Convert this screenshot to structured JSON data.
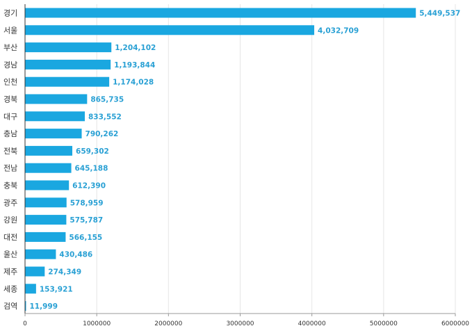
{
  "chart_data": {
    "type": "bar",
    "orientation": "horizontal",
    "title": "",
    "xlabel": "",
    "ylabel": "",
    "categories": [
      "경기",
      "서울",
      "부산",
      "경남",
      "인천",
      "경북",
      "대구",
      "충남",
      "전북",
      "전남",
      "충북",
      "광주",
      "강원",
      "대전",
      "울산",
      "제주",
      "세종",
      "검역"
    ],
    "values": [
      5449537,
      4032709,
      1204102,
      1193844,
      1174028,
      865735,
      833552,
      790262,
      659302,
      645188,
      612390,
      578959,
      575787,
      566155,
      430486,
      274349,
      153921,
      11999
    ],
    "value_labels": [
      "5,449,537",
      "4,032,709",
      "1,204,102",
      "1,193,844",
      "1,174,028",
      "865,735",
      "833,552",
      "790,262",
      "659,302",
      "645,188",
      "612,390",
      "578,959",
      "575,787",
      "566,155",
      "430,486",
      "274,349",
      "153,921",
      "11,999"
    ],
    "xlim": [
      0,
      6000000
    ],
    "x_ticks": [
      0,
      1000000,
      2000000,
      3000000,
      4000000,
      5000000,
      6000000
    ],
    "x_tick_labels": [
      "0",
      "1000000",
      "2000000",
      "3000000",
      "4000000",
      "5000000",
      "6000000"
    ],
    "grid": true,
    "legend": "none",
    "colors": {
      "bar": "#1aa7e0",
      "label": "#29a0d4",
      "grid": "#e6e6e6",
      "axis": "#333333"
    }
  }
}
